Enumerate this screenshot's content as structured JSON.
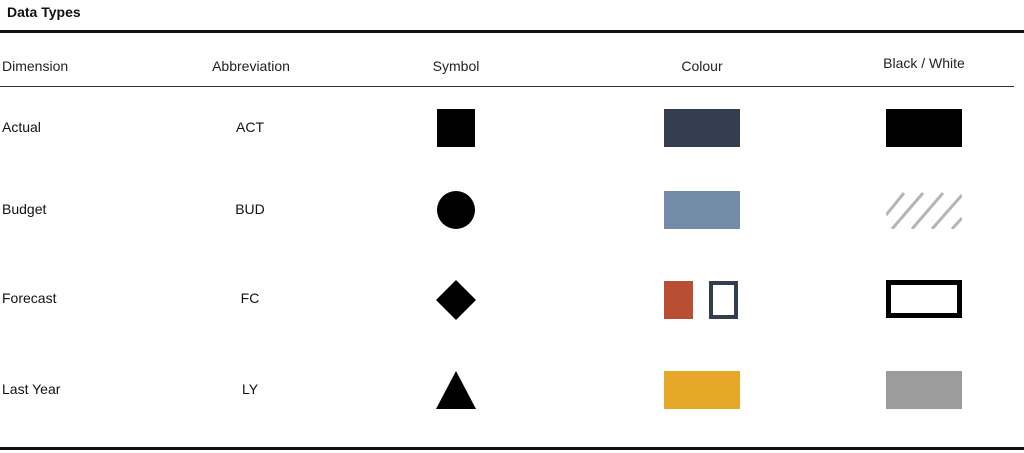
{
  "title": "Data Types",
  "columns": {
    "dimension": "Dimension",
    "abbreviation": "Abbreviation",
    "symbol": "Symbol",
    "colour": "Colour",
    "bw": "Black / White"
  },
  "rows": [
    {
      "dimension": "Actual",
      "abbreviation": "ACT",
      "symbol_icon": "square-icon",
      "colour": "#323e4f",
      "bw": "solid-black"
    },
    {
      "dimension": "Budget",
      "abbreviation": "BUD",
      "symbol_icon": "circle-icon",
      "colour": "#738ba6",
      "bw": "hatched-grey"
    },
    {
      "dimension": "Forecast",
      "abbreviation": "FC",
      "symbol_icon": "diamond-icon",
      "colour": "#b94e35",
      "colour_outline": "#323e4f",
      "bw": "outlined-black"
    },
    {
      "dimension": "Last Year",
      "abbreviation": "LY",
      "symbol_icon": "triangle-icon",
      "colour": "#e6a828",
      "bw": "solid-grey"
    }
  ],
  "bw_colors": {
    "black": "#000000",
    "grey": "#9c9c9c",
    "hatch": "#b5b5b5"
  }
}
